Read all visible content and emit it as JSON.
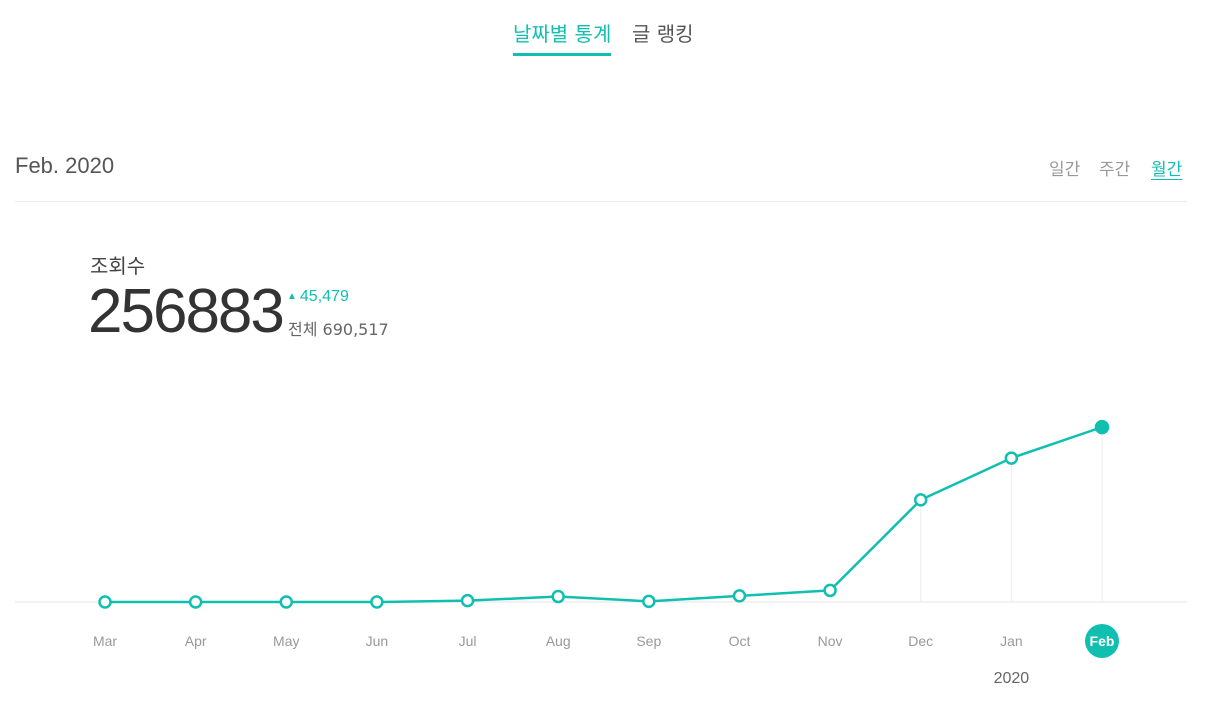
{
  "tabs": [
    {
      "label": "날짜별 통계",
      "active": true
    },
    {
      "label": "글 랭킹",
      "active": false
    }
  ],
  "period": "Feb. 2020",
  "range_tabs": [
    {
      "label": "일간",
      "active": false
    },
    {
      "label": "주간",
      "active": false
    },
    {
      "label": "월간",
      "active": true
    }
  ],
  "metric": {
    "label": "조회수",
    "value": "256883",
    "delta": "45,479",
    "total": "전체 690,517"
  },
  "colors": {
    "accent": "#11bfb1",
    "grid": "#e6e6e6",
    "muted_text": "#999999"
  },
  "icons": {
    "delta_direction": "up-triangle-icon"
  },
  "chart_data": {
    "type": "line",
    "categories": [
      "Mar",
      "Apr",
      "May",
      "Jun",
      "Jul",
      "Aug",
      "Sep",
      "Oct",
      "Nov",
      "Dec",
      "Jan",
      "Feb"
    ],
    "values": [
      0,
      0,
      0,
      0,
      2000,
      8000,
      1000,
      9000,
      17000,
      150000,
      211404,
      256883
    ],
    "year_label": "2020",
    "year_label_category": "Jan",
    "selected_category": "Feb",
    "ylim": [
      0,
      260000
    ],
    "grid": false,
    "legend": "none"
  }
}
